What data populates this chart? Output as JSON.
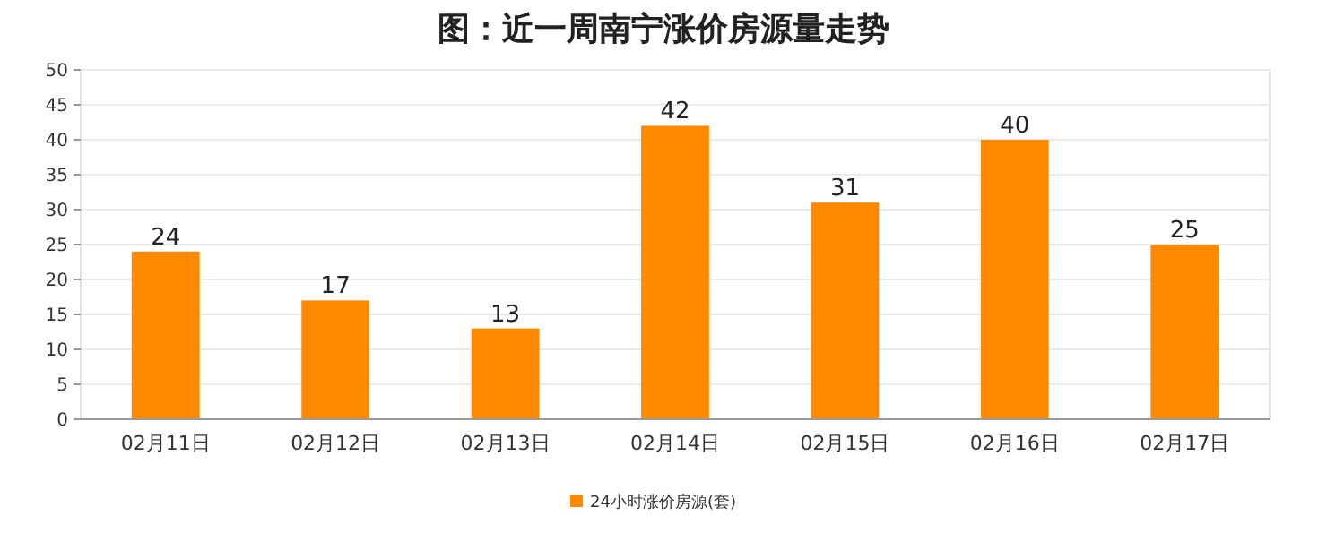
{
  "chart_data": {
    "type": "bar",
    "title": "图：近一周南宁涨价房源量走势",
    "categories": [
      "02月11日",
      "02月12日",
      "02月13日",
      "02月14日",
      "02月15日",
      "02月16日",
      "02月17日"
    ],
    "series": [
      {
        "name": "24小时涨价房源(套)",
        "color": "#ff8a00",
        "values": [
          24,
          17,
          13,
          42,
          31,
          40,
          25
        ]
      }
    ],
    "ylim": [
      0,
      50
    ],
    "yticks": [
      0,
      5,
      10,
      15,
      20,
      25,
      30,
      35,
      40,
      45,
      50
    ],
    "grid": "y",
    "legend": "bottom",
    "data_labels": true
  }
}
